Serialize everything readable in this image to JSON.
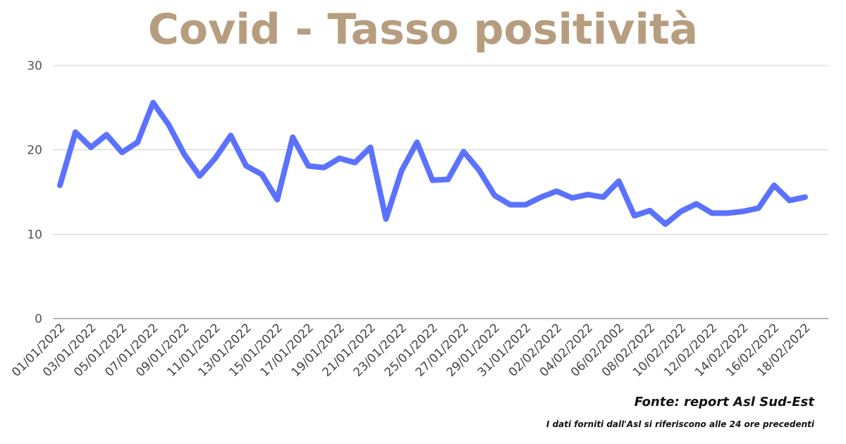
{
  "colors": {
    "title": "#b79d7f",
    "line": "#5b72ff"
  },
  "chart_data": {
    "type": "line",
    "title": "Covid - Tasso positività",
    "xlabel": "",
    "ylabel": "",
    "ylim": [
      0,
      30
    ],
    "yticks": [
      0,
      10,
      20,
      30
    ],
    "grid": true,
    "categories": [
      "01/01/2022",
      "02/01/2022",
      "03/01/2022",
      "04/01/2022",
      "05/01/2022",
      "06/01/2022",
      "07/01/2022",
      "08/01/2022",
      "09/01/2022",
      "10/01/2022",
      "11/01/2022",
      "12/01/2022",
      "13/01/2022",
      "14/01/2022",
      "15/01/2022",
      "16/01/2022",
      "17/01/2022",
      "18/01/2022",
      "19/01/2022",
      "20/01/2022",
      "21/01/2022",
      "22/01/2022",
      "23/01/2022",
      "24/01/2022",
      "25/01/2022",
      "26/01/2022",
      "27/01/2022",
      "28/01/2022",
      "29/01/2022",
      "30/01/2022",
      "31/01/2022",
      "01/02/2022",
      "02/02/2022",
      "03/02/2022",
      "04/02/2022",
      "05/02/2022",
      "06/02/2002",
      "07/02/2022",
      "08/02/2022",
      "09/02/2022",
      "10/02/2022",
      "11/02/2022",
      "12/02/2022",
      "13/02/2022",
      "14/02/2022",
      "15/02/2022",
      "16/02/2022",
      "17/02/2022",
      "18/02/2022"
    ],
    "tick_labels": [
      "01/01/2022",
      "03/01/2022",
      "05/01/2022",
      "07/01/2022",
      "09/01/2022",
      "11/01/2022",
      "13/01/2022",
      "15/01/2022",
      "17/01/2022",
      "19/01/2022",
      "21/01/2022",
      "23/01/2022",
      "25/01/2022",
      "27/01/2022",
      "29/01/2022",
      "31/01/2022",
      "02/02/2022",
      "04/02/2022",
      "06/02/2002",
      "08/02/2022",
      "10/02/2022",
      "12/02/2022",
      "14/02/2022",
      "16/02/2022",
      "18/02/2022"
    ],
    "series": [
      {
        "values": [
          15.8,
          22.1,
          20.3,
          21.8,
          19.7,
          20.9,
          25.6,
          23.0,
          19.5,
          16.9,
          19.0,
          21.7,
          18.1,
          17.1,
          14.1,
          21.5,
          18.1,
          17.9,
          19.0,
          18.5,
          20.3,
          11.8,
          17.5,
          20.9,
          16.4,
          16.5,
          19.8,
          17.6,
          14.6,
          13.5,
          13.5,
          14.4,
          15.1,
          14.3,
          14.7,
          14.4,
          16.3,
          12.2,
          12.8,
          11.2,
          12.7,
          13.6,
          12.5,
          12.5,
          12.7,
          13.1,
          15.8,
          14.0,
          14.4
        ]
      }
    ]
  },
  "footer": {
    "source": "Fonte: report Asl Sud-Est",
    "note": "I dati forniti dall'Asl si riferiscono alle 24 ore precedenti"
  }
}
